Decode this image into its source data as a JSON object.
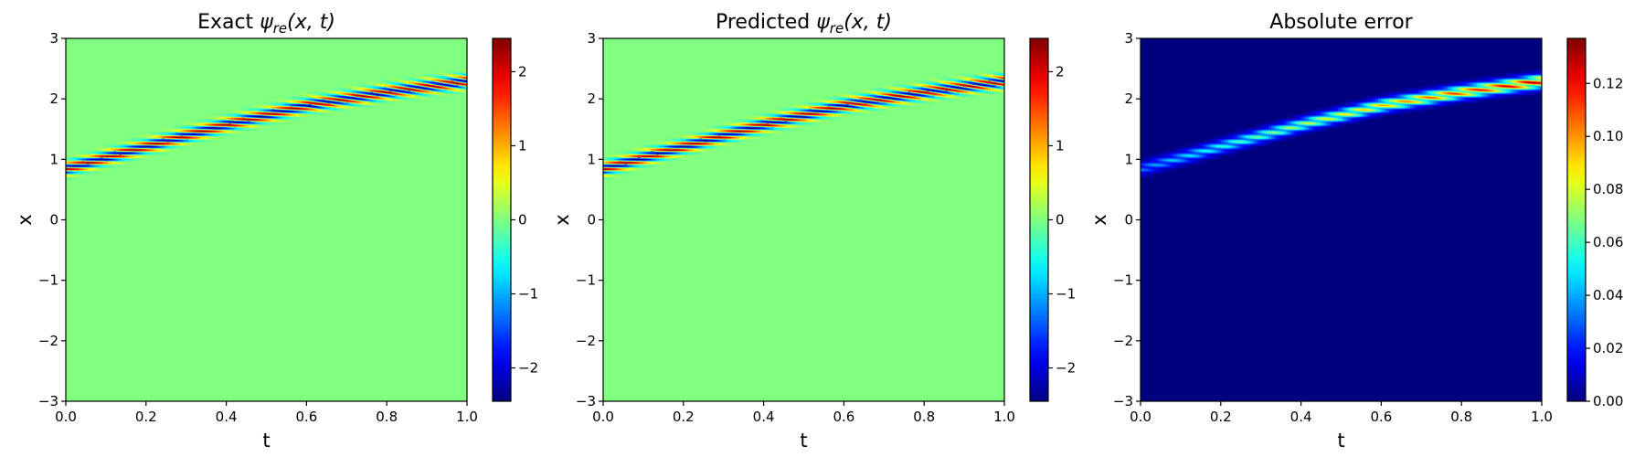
{
  "chart_data": [
    {
      "type": "heatmap",
      "title": "Exact ψre(x, t)",
      "title_parts": {
        "prefix": "Exact ",
        "symbol": "ψ",
        "subscript": "re",
        "args": "(x, t)"
      },
      "xlabel": "t",
      "ylabel": "x",
      "xlim": [
        0.0,
        1.0
      ],
      "ylim": [
        -3,
        3
      ],
      "xticks": [
        0.0,
        0.2,
        0.4,
        0.6,
        0.8,
        1.0
      ],
      "xtick_labels": [
        "0.0",
        "0.2",
        "0.4",
        "0.6",
        "0.8",
        "1.0"
      ],
      "yticks": [
        -3,
        -2,
        -1,
        0,
        1,
        2,
        3
      ],
      "ytick_labels": [
        "−3",
        "−2",
        "−1",
        "0",
        "1",
        "2",
        "3"
      ],
      "colormap": "jet",
      "clim": [
        -2.45,
        2.45
      ],
      "colorbar_ticks": [
        -2,
        -1,
        0,
        1,
        2
      ],
      "colorbar_tick_labels": [
        "−2",
        "−1",
        "0",
        "1",
        "2"
      ],
      "background_color": "#80ff80",
      "field": "oscillating wave packet",
      "band_center_x": [
        [
          0.0,
          0.85
        ],
        [
          0.2,
          1.22
        ],
        [
          0.4,
          1.58
        ],
        [
          0.6,
          1.9
        ],
        [
          0.8,
          2.12
        ],
        [
          1.0,
          2.3
        ]
      ],
      "band_halfwidth": 0.16
    },
    {
      "type": "heatmap",
      "title": "Predicted ψre(x, t)",
      "title_parts": {
        "prefix": "Predicted ",
        "symbol": "ψ",
        "subscript": "re",
        "args": "(x, t)"
      },
      "xlabel": "t",
      "ylabel": "x",
      "xlim": [
        0.0,
        1.0
      ],
      "ylim": [
        -3,
        3
      ],
      "xticks": [
        0.0,
        0.2,
        0.4,
        0.6,
        0.8,
        1.0
      ],
      "xtick_labels": [
        "0.0",
        "0.2",
        "0.4",
        "0.6",
        "0.8",
        "1.0"
      ],
      "yticks": [
        -3,
        -2,
        -1,
        0,
        1,
        2,
        3
      ],
      "ytick_labels": [
        "−3",
        "−2",
        "−1",
        "0",
        "1",
        "2",
        "3"
      ],
      "colormap": "jet",
      "clim": [
        -2.45,
        2.45
      ],
      "colorbar_ticks": [
        -2,
        -1,
        0,
        1,
        2
      ],
      "colorbar_tick_labels": [
        "−2",
        "−1",
        "0",
        "1",
        "2"
      ],
      "background_color": "#80ff80",
      "field": "oscillating wave packet",
      "band_center_x": [
        [
          0.0,
          0.85
        ],
        [
          0.2,
          1.22
        ],
        [
          0.4,
          1.58
        ],
        [
          0.6,
          1.9
        ],
        [
          0.8,
          2.12
        ],
        [
          1.0,
          2.3
        ]
      ],
      "band_halfwidth": 0.16
    },
    {
      "type": "heatmap",
      "title": "Absolute error",
      "title_parts": {
        "prefix": "Absolute error",
        "symbol": "",
        "subscript": "",
        "args": ""
      },
      "xlabel": "t",
      "ylabel": "x",
      "xlim": [
        0.0,
        1.0
      ],
      "ylim": [
        -3,
        3
      ],
      "xticks": [
        0.0,
        0.2,
        0.4,
        0.6,
        0.8,
        1.0
      ],
      "xtick_labels": [
        "0.0",
        "0.2",
        "0.4",
        "0.6",
        "0.8",
        "1.0"
      ],
      "yticks": [
        -3,
        -2,
        -1,
        0,
        1,
        2,
        3
      ],
      "ytick_labels": [
        "−3",
        "−2",
        "−1",
        "0",
        "1",
        "2",
        "3"
      ],
      "colormap": "jet",
      "clim": [
        0.0,
        0.137
      ],
      "colorbar_ticks": [
        0.0,
        0.02,
        0.04,
        0.06,
        0.08,
        0.1,
        0.12
      ],
      "colorbar_tick_labels": [
        "0.00",
        "0.02",
        "0.04",
        "0.06",
        "0.08",
        "0.10",
        "0.12"
      ],
      "background_color": "#00007f",
      "field": "error envelope",
      "band_center_x": [
        [
          0.0,
          0.85
        ],
        [
          0.2,
          1.22
        ],
        [
          0.4,
          1.58
        ],
        [
          0.6,
          1.9
        ],
        [
          0.8,
          2.12
        ],
        [
          1.0,
          2.3
        ]
      ],
      "band_halfwidth": 0.16
    }
  ]
}
